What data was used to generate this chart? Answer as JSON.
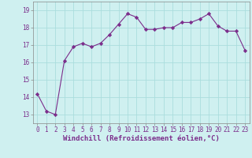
{
  "x": [
    0,
    1,
    2,
    3,
    4,
    5,
    6,
    7,
    8,
    9,
    10,
    11,
    12,
    13,
    14,
    15,
    16,
    17,
    18,
    19,
    20,
    21,
    22,
    23
  ],
  "y": [
    14.2,
    13.2,
    13.0,
    16.1,
    16.9,
    17.1,
    16.9,
    17.1,
    17.6,
    18.2,
    18.8,
    18.6,
    17.9,
    17.9,
    18.0,
    18.0,
    18.3,
    18.3,
    18.5,
    18.8,
    18.1,
    17.8,
    17.8,
    16.7
  ],
  "line_color": "#7b2d8b",
  "marker": "D",
  "marker_size": 2.2,
  "bg_color": "#cff0f0",
  "grid_color": "#aadddd",
  "xlabel": "Windchill (Refroidissement éolien,°C)",
  "xlabel_fontsize": 6.5,
  "tick_fontsize": 5.5,
  "ylim": [
    12.5,
    19.5
  ],
  "xlim": [
    -0.5,
    23.5
  ],
  "yticks": [
    13,
    14,
    15,
    16,
    17,
    18,
    19
  ],
  "xticks": [
    0,
    1,
    2,
    3,
    4,
    5,
    6,
    7,
    8,
    9,
    10,
    11,
    12,
    13,
    14,
    15,
    16,
    17,
    18,
    19,
    20,
    21,
    22,
    23
  ]
}
